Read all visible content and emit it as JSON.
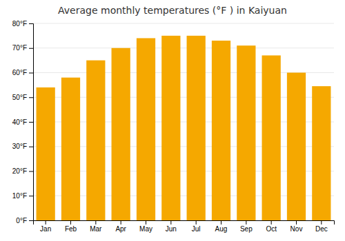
{
  "chart_data": {
    "type": "bar",
    "title": "Average monthly temperatures (°F ) in Kaiyuan",
    "categories": [
      "Jan",
      "Feb",
      "Mar",
      "Apr",
      "May",
      "Jun",
      "Jul",
      "Aug",
      "Sep",
      "Oct",
      "Nov",
      "Dec"
    ],
    "values": [
      54,
      58,
      65,
      70,
      74,
      75,
      75,
      73,
      71,
      67,
      60,
      54.5
    ],
    "color": "#F5A800",
    "ylim": [
      0,
      80
    ],
    "yticks": [
      {
        "value": 0,
        "label": "0°F"
      },
      {
        "value": 10,
        "label": "10°F"
      },
      {
        "value": 20,
        "label": "20°F"
      },
      {
        "value": 30,
        "label": "30°F"
      },
      {
        "value": 40,
        "label": "40°F"
      },
      {
        "value": 50,
        "label": "50°F"
      },
      {
        "value": 60,
        "label": "60°F"
      },
      {
        "value": 70,
        "label": "70°F"
      },
      {
        "value": 80,
        "label": "80°F"
      }
    ],
    "grid": true
  }
}
